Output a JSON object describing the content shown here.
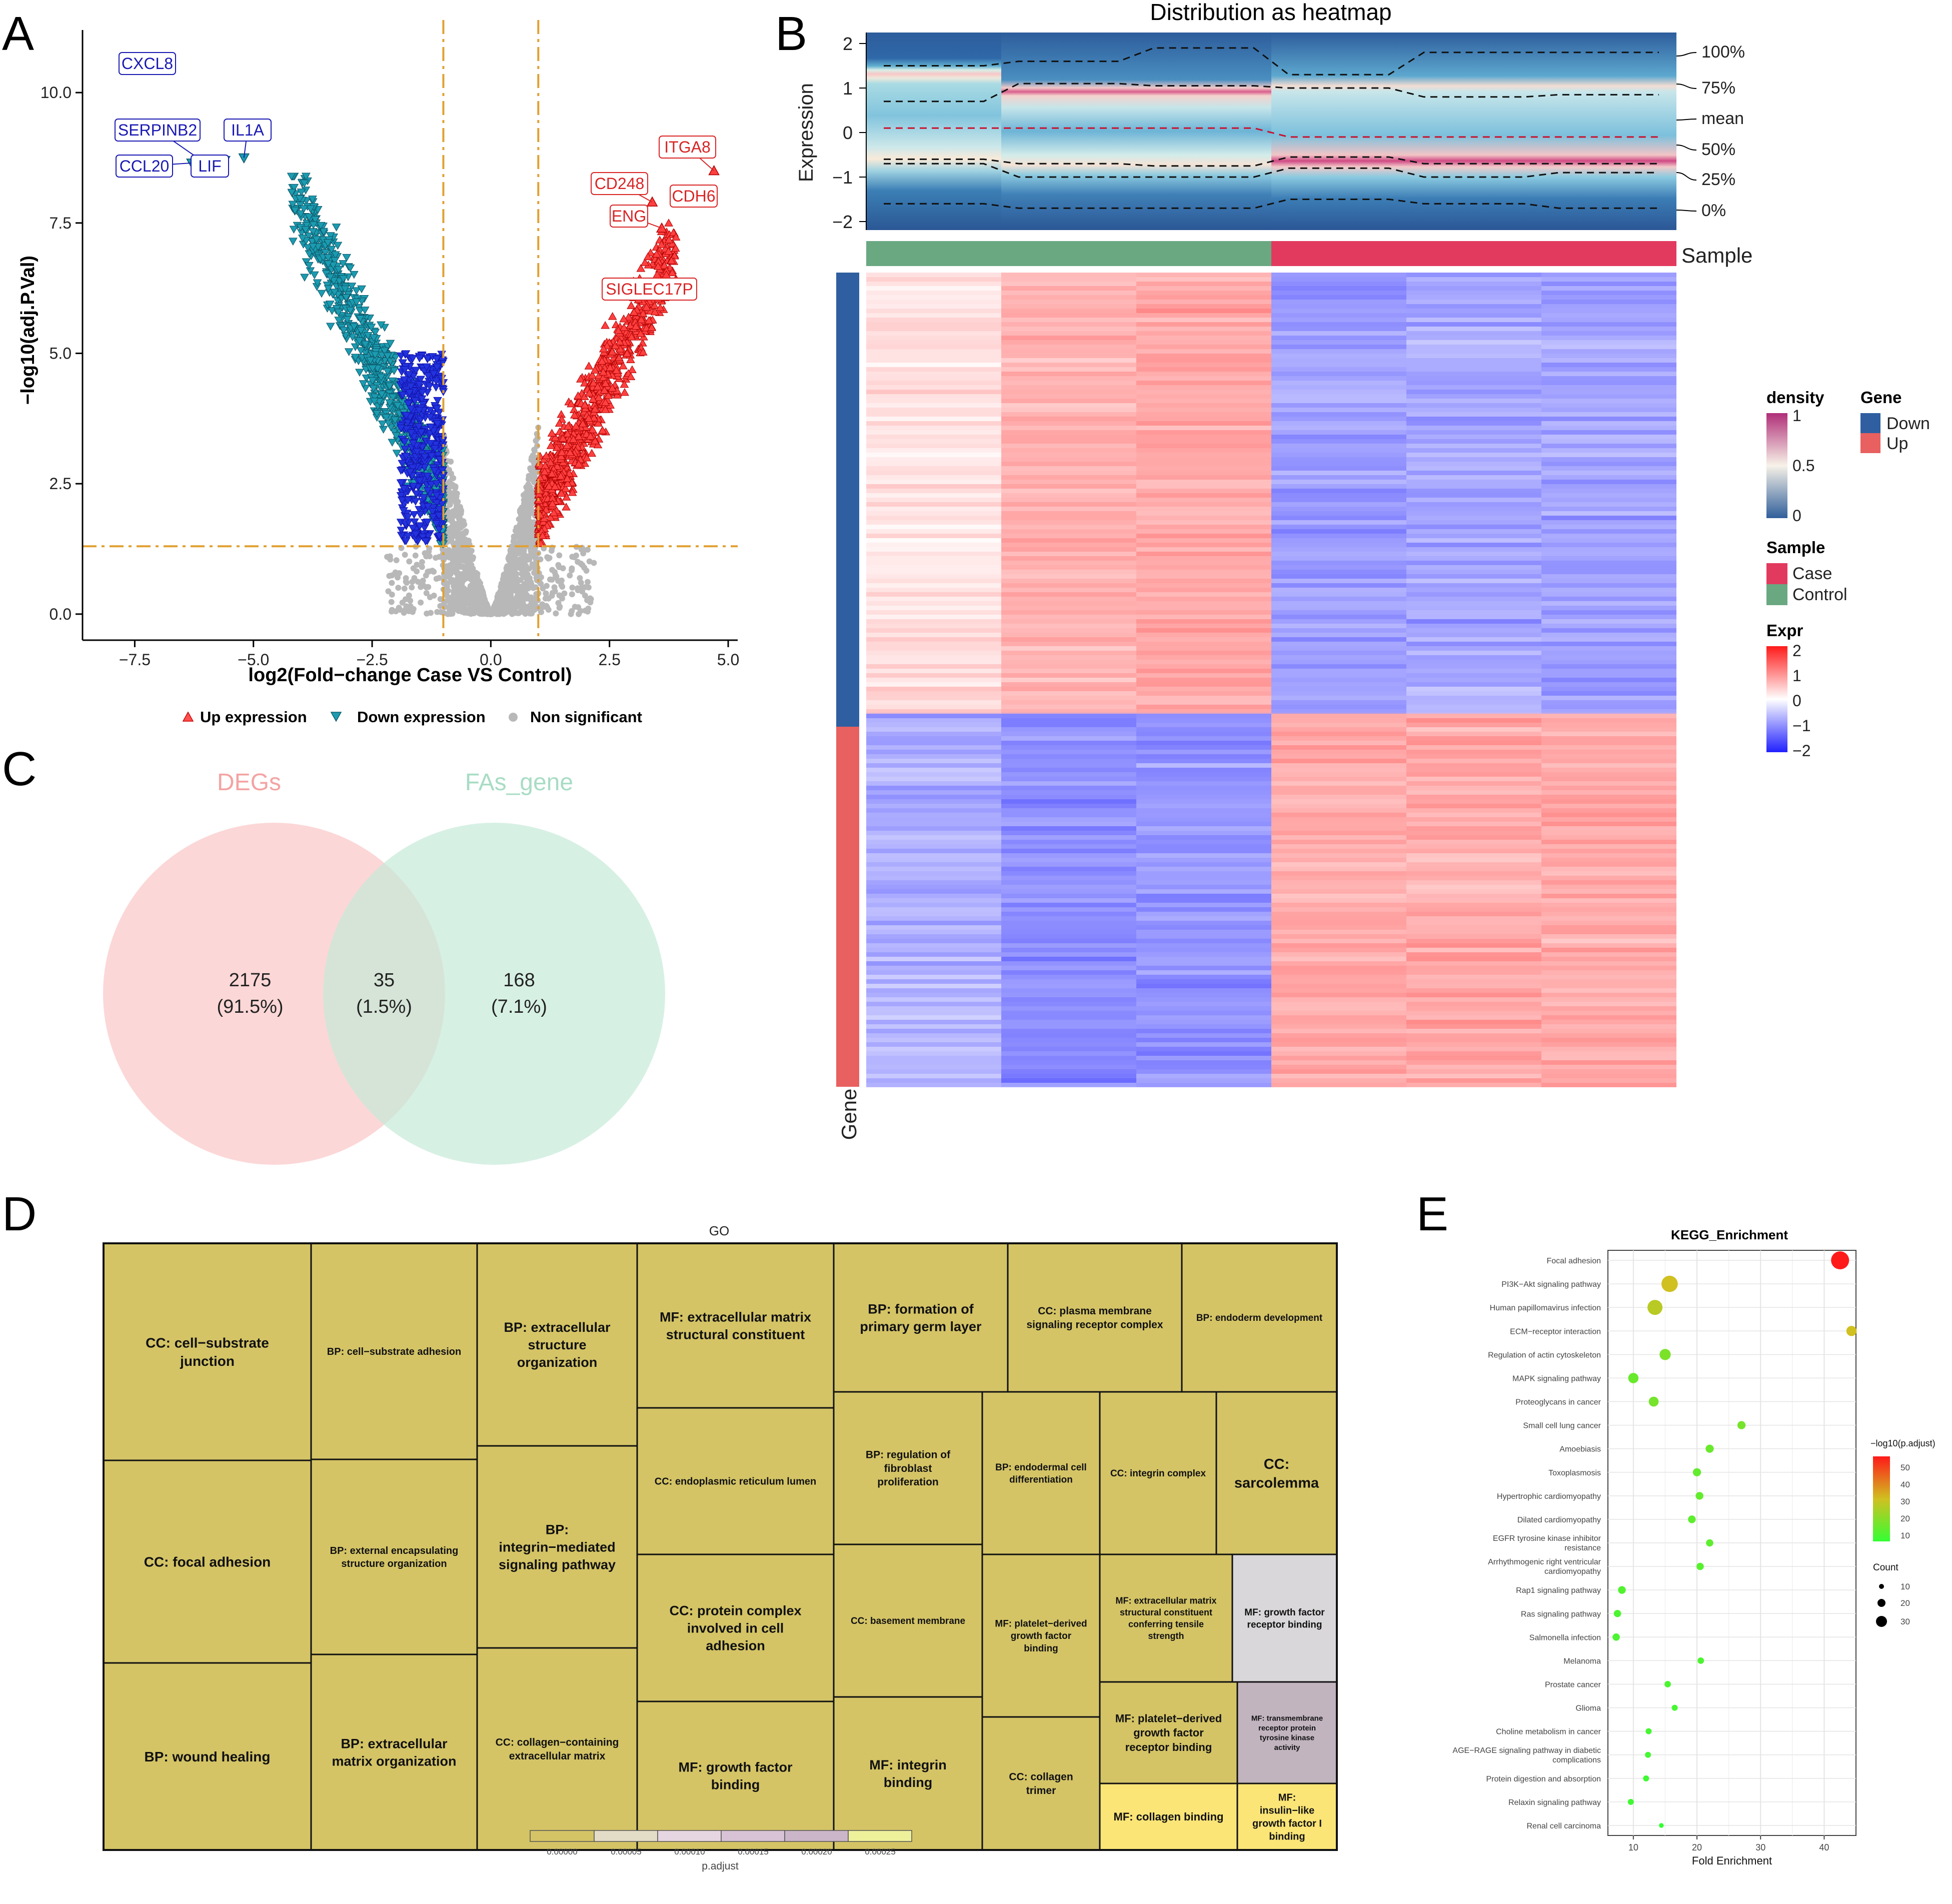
{
  "panels": {
    "a": "A",
    "b": "B",
    "c": "C",
    "d": "D",
    "e": "E"
  },
  "colors": {
    "up": "#ff3030",
    "down": "#1b9bb0",
    "ns": "#b8b8b8",
    "threshold": "#e0a030",
    "heat_low": "#3b3bff",
    "heat_mid": "#ffffff",
    "heat_high": "#ff3030",
    "case": "#e23a5e",
    "control": "#6aa882",
    "gene_down": "#2f5fa0",
    "gene_up": "#e86060",
    "treemap_tile": "#d4c466",
    "treemap_light": "#fbe577",
    "treemap_grey": "#d9d7da",
    "treemap_mauve": "#c1b4bf"
  },
  "chart_data": [
    {
      "type": "scatter",
      "panel": "A",
      "xlabel": "log2(Fold−change Case VS Control)",
      "ylabel": "−log10(adj.P.Val)",
      "xlim": [
        -8.6,
        5.2
      ],
      "ylim": [
        -0.5,
        11.2
      ],
      "xticks": [
        -7.5,
        -5.0,
        -2.5,
        0.0,
        2.5,
        5.0
      ],
      "xtick_labels": [
        "−7.5",
        "−5.0",
        "−2.5",
        "0.0",
        "2.5",
        "5.0"
      ],
      "yticks": [
        0.0,
        2.5,
        5.0,
        7.5,
        10.0
      ],
      "ytick_labels": [
        "0.0",
        "2.5",
        "5.0",
        "7.5",
        "10.0"
      ],
      "thresholds": {
        "x": [
          -1,
          1
        ],
        "y": 1.3
      },
      "legend": [
        "Up expression",
        "Down expression",
        "Non significant"
      ],
      "labeled_genes": [
        {
          "name": "CXCL8",
          "x": -7.6,
          "y": 10.5,
          "group": "down"
        },
        {
          "name": "SERPINB2",
          "x": -6.1,
          "y": 8.7,
          "group": "down"
        },
        {
          "name": "IL1A",
          "x": -5.2,
          "y": 8.75,
          "group": "down"
        },
        {
          "name": "CCL20",
          "x": -6.3,
          "y": 8.65,
          "group": "down"
        },
        {
          "name": "LIF",
          "x": -5.6,
          "y": 8.7,
          "group": "down"
        },
        {
          "name": "ITGA8",
          "x": 4.7,
          "y": 8.5,
          "group": "up"
        },
        {
          "name": "CD248",
          "x": 3.4,
          "y": 7.9,
          "group": "up"
        },
        {
          "name": "CDH6",
          "x": 4.15,
          "y": 7.9,
          "group": "up"
        },
        {
          "name": "ENG",
          "x": 3.6,
          "y": 7.4,
          "group": "up"
        },
        {
          "name": "SIGLEC17P",
          "x": 3.9,
          "y": 6.4,
          "group": "up"
        }
      ],
      "counts": {
        "down": 1120,
        "up": 1090
      }
    },
    {
      "type": "heatmap",
      "panel": "B",
      "title": "Distribution as heatmap",
      "top_ylabel": "Expression",
      "top_yticks": [
        "2",
        "1",
        "0",
        "−1",
        "−2"
      ],
      "quantile_labels": [
        "100%",
        "75%",
        "mean",
        "50%",
        "25%",
        "0%"
      ],
      "sample_label": "Sample",
      "gene_label": "Gene",
      "samples": [
        "Control",
        "Control",
        "Control",
        "Case",
        "Case",
        "Case"
      ],
      "legend_density": {
        "title": "density",
        "ticks": [
          "1",
          "0.5",
          "0"
        ]
      },
      "legend_gene": {
        "title": "Gene",
        "items": [
          "Down",
          "Up"
        ]
      },
      "legend_sample": {
        "title": "Sample",
        "items": [
          "Case",
          "Control"
        ]
      },
      "legend_expr": {
        "title": "Expr",
        "ticks": [
          "2",
          "1",
          "0",
          "−1",
          "−2"
        ]
      },
      "row_split_fraction_down": 0.54
    },
    {
      "type": "venn",
      "panel": "C",
      "sets": [
        "DEGs",
        "FAs_gene"
      ],
      "regions": [
        {
          "count": "2175",
          "percent": "(91.5%)"
        },
        {
          "count": "35",
          "percent": "(1.5%)"
        },
        {
          "count": "168",
          "percent": "(7.1%)"
        }
      ]
    },
    {
      "type": "treemap",
      "panel": "D",
      "title": "GO",
      "legend_title": "p.adjust",
      "legend_ticks": [
        "0.00000",
        "0.00005",
        "0.00010",
        "0.00015",
        "0.00020",
        "0.00025"
      ],
      "tiles": [
        "CC: cell−substrate junction",
        "CC: focal adhesion",
        "BP: wound healing",
        "BP: cell−substrate adhesion",
        "BP: external encapsulating structure organization",
        "BP: extracellular matrix organization",
        "BP: extracellular structure organization",
        "BP: integrin−mediated signaling pathway",
        "CC: collagen−containing extracellular matrix",
        "MF: extracellular matrix structural constituent",
        "CC: endoplasmic reticulum lumen",
        "CC: protein complex involved in cell adhesion",
        "MF: growth factor binding",
        "BP: formation of primary germ layer",
        "BP: regulation of fibroblast proliferation",
        "CC: basement membrane",
        "MF: integrin binding",
        "CC: plasma membrane signaling receptor complex",
        "BP: endoderm development",
        "BP: endodermal cell differentiation",
        "CC: integrin complex",
        "CC: sarcolemma",
        "MF: platelet−derived growth factor binding",
        "CC: collagen trimer",
        "MF: extracellular matrix structural constituent conferring tensile strength",
        "MF: growth factor receptor binding",
        "MF: platelet−derived growth factor receptor binding",
        "MF: transmembrane receptor protein tyrosine kinase activity",
        "MF: collagen binding",
        "MF: insulin−like growth factor I binding"
      ]
    },
    {
      "type": "scatter",
      "panel": "E",
      "title": "KEGG_Enrichment",
      "xlabel": "Fold Enrichment",
      "xlim": [
        6,
        45
      ],
      "xticks": [
        10,
        20,
        30,
        40
      ],
      "color_legend": {
        "title": "−log10(p.adjust)",
        "ticks": [
          "50",
          "40",
          "30",
          "20",
          "10"
        ],
        "range": [
          5,
          57
        ]
      },
      "size_legend": {
        "title": "Count",
        "ticks": [
          "10",
          "20",
          "30"
        ]
      },
      "pathways": [
        {
          "name": "Focal adhesion",
          "fold": 42.5,
          "logp": 57,
          "count": 35
        },
        {
          "name": "PI3K−Akt signaling pathway",
          "fold": 15.7,
          "logp": 31,
          "count": 31
        },
        {
          "name": "Human papillomavirus infection",
          "fold": 13.4,
          "logp": 27,
          "count": 28
        },
        {
          "name": "ECM−receptor interaction",
          "fold": 44.3,
          "logp": 31,
          "count": 17
        },
        {
          "name": "Regulation of actin cytoskeleton",
          "fold": 15.0,
          "logp": 17,
          "count": 19
        },
        {
          "name": "MAPK signaling pathway",
          "fold": 10.0,
          "logp": 14,
          "count": 17
        },
        {
          "name": "Proteoglycans in cancer",
          "fold": 13.2,
          "logp": 16,
          "count": 16
        },
        {
          "name": "Small cell lung cancer",
          "fold": 27.0,
          "logp": 16,
          "count": 12
        },
        {
          "name": "Amoebiasis",
          "fold": 22.0,
          "logp": 14,
          "count": 12
        },
        {
          "name": "Toxoplasmosis",
          "fold": 20.0,
          "logp": 13,
          "count": 12
        },
        {
          "name": "Hypertrophic cardiomyopathy",
          "fold": 20.4,
          "logp": 13,
          "count": 11
        },
        {
          "name": "Dilated cardiomyopathy",
          "fold": 19.2,
          "logp": 12,
          "count": 11
        },
        {
          "name": "EGFR tyrosine kinase inhibitor\nresistance",
          "fold": 22.0,
          "logp": 12,
          "count": 10
        },
        {
          "name": "Arrhythmogenic right ventricular\ncardiomyopathy",
          "fold": 20.5,
          "logp": 11,
          "count": 10
        },
        {
          "name": "Rap1 signaling pathway",
          "fold": 8.2,
          "logp": 10,
          "count": 11
        },
        {
          "name": "Ras signaling pathway",
          "fold": 7.5,
          "logp": 9,
          "count": 10
        },
        {
          "name": "Salmonella infection",
          "fold": 7.3,
          "logp": 9,
          "count": 10
        },
        {
          "name": "Melanoma",
          "fold": 20.6,
          "logp": 9,
          "count": 8
        },
        {
          "name": "Prostate cancer",
          "fold": 15.4,
          "logp": 9,
          "count": 8
        },
        {
          "name": "Glioma",
          "fold": 16.5,
          "logp": 8,
          "count": 7
        },
        {
          "name": "Choline metabolism in cancer",
          "fold": 12.4,
          "logp": 8,
          "count": 7
        },
        {
          "name": "AGE−RAGE signaling pathway in diabetic\ncomplications",
          "fold": 12.3,
          "logp": 8,
          "count": 7
        },
        {
          "name": "Protein digestion and absorption",
          "fold": 12.0,
          "logp": 7,
          "count": 7
        },
        {
          "name": "Relaxin signaling pathway",
          "fold": 9.6,
          "logp": 7,
          "count": 7
        },
        {
          "name": "Renal cell carcinoma",
          "fold": 14.4,
          "logp": 5,
          "count": 4
        }
      ]
    }
  ]
}
